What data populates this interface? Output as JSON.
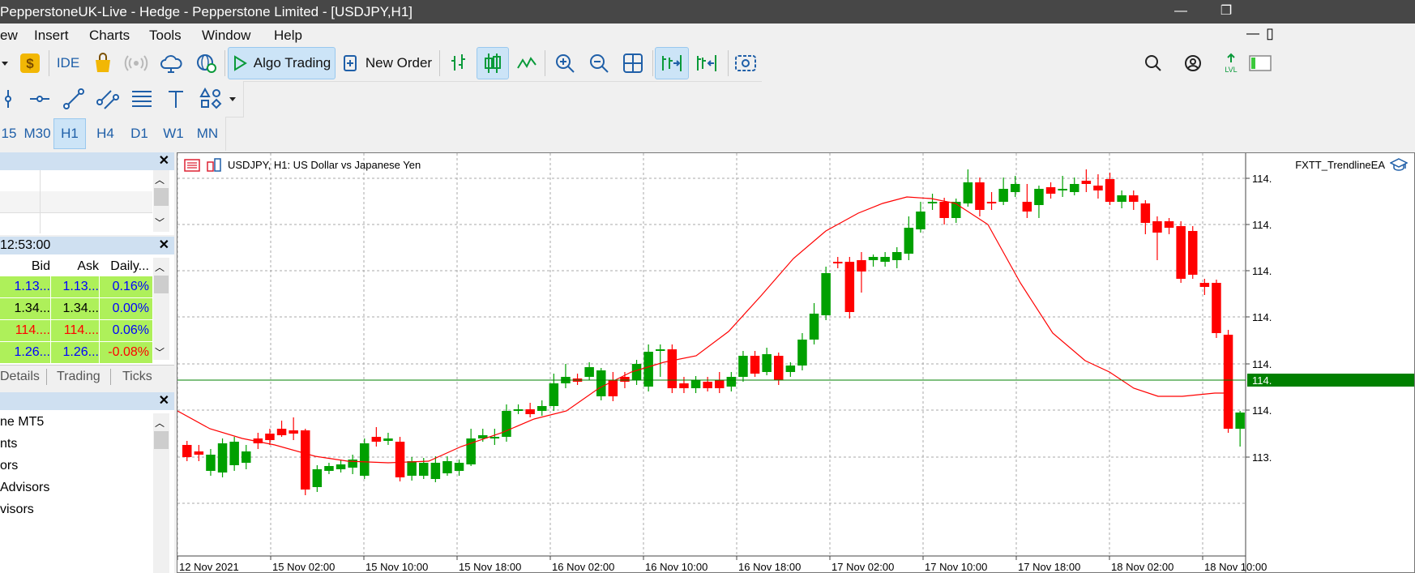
{
  "window": {
    "title": "PepperstoneUK-Live - Hedge - Pepperstone Limited - [USDJPY,H1]",
    "minimize_glyph": "—",
    "restore_glyph": "❐"
  },
  "menu": [
    "ew",
    "Insert",
    "Charts",
    "Tools",
    "Window",
    "Help"
  ],
  "toolbar": {
    "ide_label": "IDE",
    "algo_label": "Algo Trading",
    "new_order_label": "New Order"
  },
  "timeframes": [
    "15",
    "M30",
    "H1",
    "H4",
    "D1",
    "W1",
    "MN"
  ],
  "active_timeframe": "H1",
  "market_watch": {
    "time": "12:53:00",
    "columns": [
      "Bid",
      "Ask",
      "Daily..."
    ],
    "rows": [
      {
        "bid": "1.13...",
        "ask": "1.13...",
        "daily": "0.16%",
        "bid_color": "#0000ff",
        "ask_color": "#0000ff",
        "daily_color": "#0000ff"
      },
      {
        "bid": "1.34...",
        "ask": "1.34...",
        "daily": "0.00%",
        "bid_color": "#000000",
        "ask_color": "#000000",
        "daily_color": "#0000ff"
      },
      {
        "bid": "114....",
        "ask": "114....",
        "daily": "0.06%",
        "bid_color": "#ff0000",
        "ask_color": "#ff0000",
        "daily_color": "#0000ff"
      },
      {
        "bid": "1.26...",
        "ask": "1.26...",
        "daily": "-0.08%",
        "bid_color": "#0000ff",
        "ask_color": "#0000ff",
        "daily_color": "#ff0000"
      }
    ],
    "tabs": [
      "Details",
      "Trading",
      "Ticks"
    ]
  },
  "navigator": {
    "items": [
      "ne MT5",
      "nts",
      "ors",
      "Advisors",
      "visors"
    ]
  },
  "chart": {
    "symbol_title": "USDJPY, H1:  US Dollar vs Japanese Yen",
    "ea_label": "FXTT_TrendlineEA",
    "price_labels": [
      "114.",
      "114.",
      "114.",
      "114.",
      "114.",
      "114.",
      "113."
    ],
    "current_price_label": "114.",
    "time_labels": [
      "12 Nov 2021",
      "15 Nov 02:00",
      "15 Nov 10:00",
      "15 Nov 18:00",
      "16 Nov 02:00",
      "16 Nov 10:00",
      "16 Nov 18:00",
      "17 Nov 02:00",
      "17 Nov 10:00",
      "17 Nov 18:00",
      "18 Nov 02:00",
      "18 Nov 10:00"
    ],
    "bull_color": "#00a000",
    "bear_color": "#ff0000",
    "ma_color": "#ff0000",
    "price_line_color": "#008000"
  }
}
